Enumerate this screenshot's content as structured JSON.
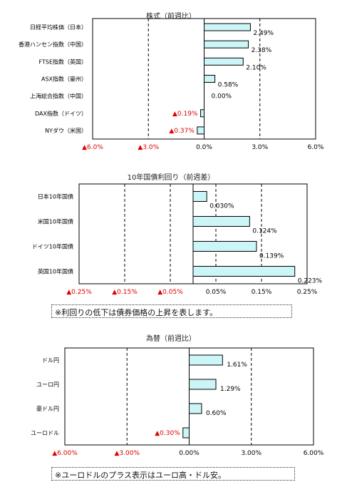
{
  "charts_meta": {
    "neg_color": "#e00000",
    "bar_fill": "#ccf5f7",
    "bar_stroke": "#000000"
  },
  "chart_data": [
    {
      "type": "bar",
      "orientation": "horizontal",
      "title": "株式（前週比）",
      "categories": [
        "日経平均株価（日本）",
        "香港ハンセン指数（中国）",
        "FTSE指数（英国）",
        "ASX指数（豪州）",
        "上海総合指数（中国）",
        "DAX指数（ドイツ）",
        "NYダウ（米国）"
      ],
      "values": [
        2.49,
        2.38,
        2.1,
        0.58,
        0.0,
        -0.19,
        -0.37
      ],
      "value_labels": [
        "2.49%",
        "2.38%",
        "2.10%",
        "0.58%",
        "0.00%",
        "▲0.19%",
        "▲0.37%"
      ],
      "xlim": [
        -6,
        6
      ],
      "ticks": [
        -6,
        -3,
        0,
        3,
        6
      ],
      "tick_labels": [
        "▲6.0%",
        "▲3.0%",
        "0.0%",
        "3.0%",
        "6.0%"
      ],
      "grid": "dashed vertical at ticks"
    },
    {
      "type": "bar",
      "orientation": "horizontal",
      "title": "10年国債利回り（前週差）",
      "categories": [
        "日本10年国債",
        "米国10年国債",
        "ドイツ10年国債",
        "英国10年国債"
      ],
      "values": [
        0.03,
        0.124,
        0.139,
        0.223
      ],
      "value_labels": [
        "0.030%",
        "0.124%",
        "0.139%",
        "0.223%"
      ],
      "xlim": [
        -0.25,
        0.25
      ],
      "ticks": [
        -0.25,
        -0.15,
        -0.05,
        0.05,
        0.15,
        0.25
      ],
      "tick_labels": [
        "▲0.25%",
        "▲0.15%",
        "▲0.05%",
        "0.05%",
        "0.15%",
        "0.25%"
      ],
      "grid": "dashed vertical at ticks",
      "note": "※利回りの低下は債券価格の上昇を表します。"
    },
    {
      "type": "bar",
      "orientation": "horizontal",
      "title": "為替（前週比）",
      "categories": [
        "ドル円",
        "ユーロ円",
        "豪ドル円",
        "ユーロドル"
      ],
      "values": [
        1.61,
        1.29,
        0.6,
        -0.3
      ],
      "value_labels": [
        "1.61%",
        "1.29%",
        "0.60%",
        "▲0.30%"
      ],
      "xlim": [
        -6,
        6
      ],
      "ticks": [
        -6,
        -3,
        0,
        3,
        6
      ],
      "tick_labels": [
        "▲6.00%",
        "▲3.00%",
        "0.00%",
        "3.00%",
        "6.00%"
      ],
      "grid": "dashed vertical at ticks",
      "note": "※ユーロドルのプラス表示はユーロ高・ドル安。"
    }
  ]
}
